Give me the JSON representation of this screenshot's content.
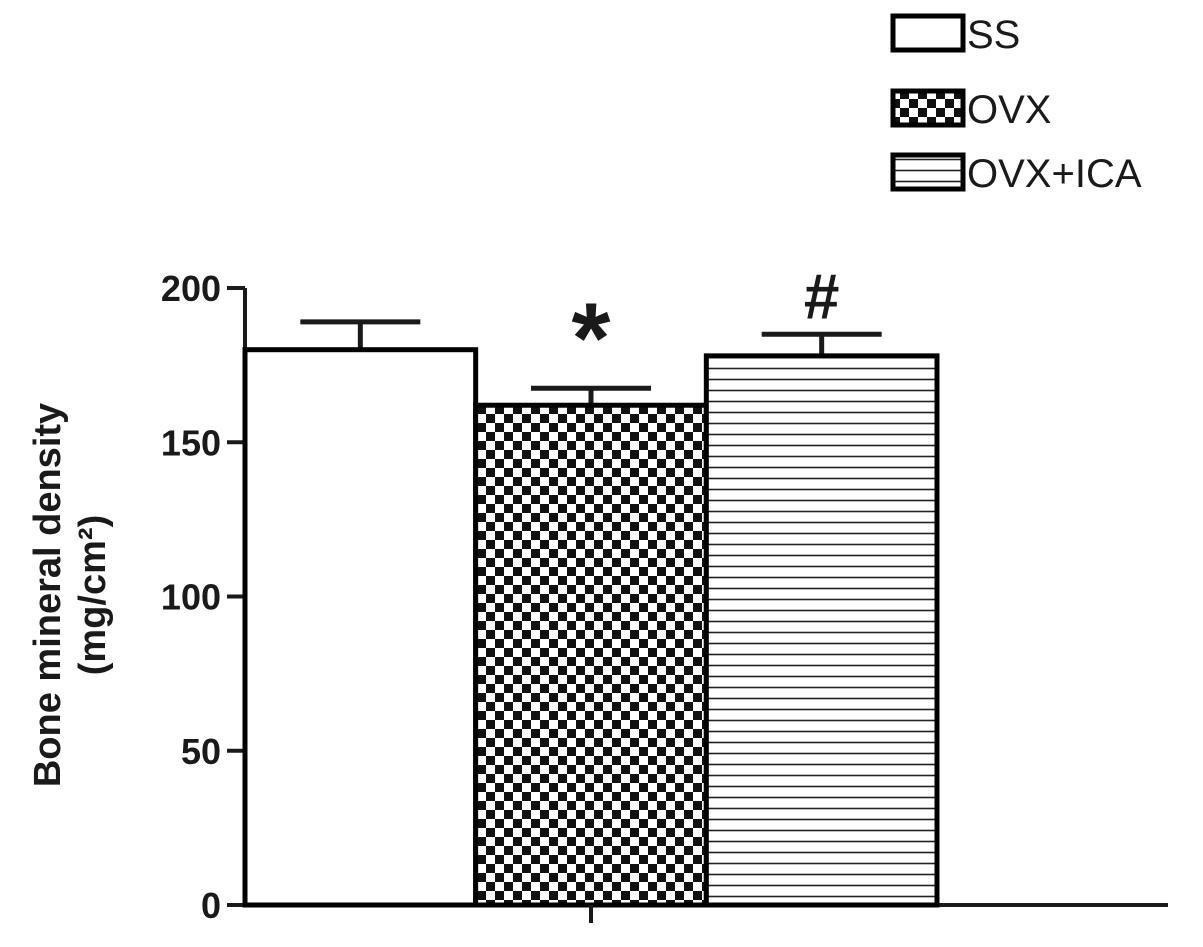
{
  "chart_data": {
    "type": "bar",
    "y_label": [
      "Bone mineral density",
      "(mg/cm²)"
    ],
    "categories": [
      null
    ],
    "series": [
      {
        "name": "SS",
        "color": "#000000",
        "pattern": "none",
        "values": [
          180
        ],
        "errors": [
          9
        ]
      },
      {
        "name": "OVX",
        "color": "#000000",
        "pattern": "checker",
        "values": [
          162
        ],
        "errors": [
          5.5
        ],
        "annotation": "*"
      },
      {
        "name": "OVX+ICA",
        "color": "#000000",
        "pattern": "hlines",
        "values": [
          178
        ],
        "errors": [
          7
        ],
        "annotation": "#"
      }
    ],
    "ylim": [
      0,
      200
    ],
    "yticks": [
      0,
      50,
      100,
      150,
      200
    ],
    "legend": "top right",
    "grid": false
  }
}
